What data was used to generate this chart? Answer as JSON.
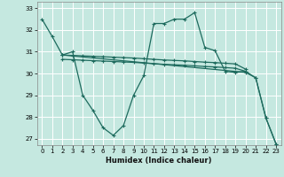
{
  "xlabel": "Humidex (Indice chaleur)",
  "bg_color": "#c5e8e0",
  "grid_color": "#ffffff",
  "line_color": "#1e6b5e",
  "xlim": [
    -0.5,
    23.5
  ],
  "ylim": [
    26.7,
    33.3
  ],
  "xticks": [
    0,
    1,
    2,
    3,
    4,
    5,
    6,
    7,
    8,
    9,
    10,
    11,
    12,
    13,
    14,
    15,
    16,
    17,
    18,
    19,
    20,
    21,
    22,
    23
  ],
  "yticks": [
    27,
    28,
    29,
    30,
    31,
    32,
    33
  ],
  "line_wavy_x": [
    0,
    1,
    2,
    3,
    4,
    5,
    6,
    7,
    8,
    9,
    10,
    11,
    12,
    13,
    14,
    15,
    16,
    17,
    18,
    19,
    20,
    21,
    22,
    23
  ],
  "line_wavy_y": [
    32.5,
    31.7,
    30.85,
    31.0,
    29.0,
    28.3,
    27.5,
    27.15,
    27.6,
    29.0,
    29.9,
    32.3,
    32.3,
    32.5,
    32.5,
    32.8,
    31.2,
    31.05,
    30.1,
    30.05,
    30.1,
    29.8,
    27.95,
    26.75
  ],
  "line_flat_top_x": [
    2,
    3,
    4,
    5,
    6,
    7,
    8,
    9,
    10,
    11,
    12,
    13,
    14,
    15,
    16,
    17,
    18,
    19,
    20
  ],
  "line_flat_top_y": [
    30.85,
    30.83,
    30.81,
    30.79,
    30.77,
    30.75,
    30.73,
    30.71,
    30.68,
    30.65,
    30.62,
    30.6,
    30.58,
    30.55,
    30.52,
    30.5,
    30.47,
    30.44,
    30.2
  ],
  "line_flat_bot_x": [
    2,
    3,
    4,
    5,
    6,
    7,
    8,
    9,
    10,
    11,
    12,
    13,
    14,
    15,
    16,
    17,
    18,
    19,
    20
  ],
  "line_flat_bot_y": [
    30.65,
    30.63,
    30.61,
    30.59,
    30.57,
    30.55,
    30.53,
    30.51,
    30.48,
    30.45,
    30.42,
    30.4,
    30.38,
    30.35,
    30.32,
    30.3,
    30.27,
    30.24,
    30.1
  ],
  "line_diag_x": [
    2,
    20,
    21,
    22,
    23
  ],
  "line_diag_y": [
    30.85,
    30.05,
    29.8,
    27.95,
    26.75
  ]
}
